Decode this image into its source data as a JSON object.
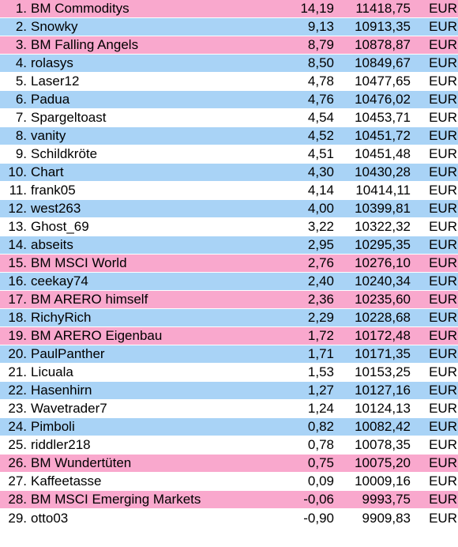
{
  "rows": [
    {
      "rank": "1.",
      "name": "BM Commoditys",
      "pct": "14,19",
      "value": "11418,75",
      "currency": "EUR",
      "color": "pink"
    },
    {
      "rank": "2.",
      "name": "Snowky",
      "pct": "9,13",
      "value": "10913,35",
      "currency": "EUR",
      "color": "blue"
    },
    {
      "rank": "3.",
      "name": "BM Falling Angels",
      "pct": "8,79",
      "value": "10878,87",
      "currency": "EUR",
      "color": "pink"
    },
    {
      "rank": "4.",
      "name": "rolasys",
      "pct": "8,50",
      "value": "10849,67",
      "currency": "EUR",
      "color": "blue"
    },
    {
      "rank": "5.",
      "name": "Laser12",
      "pct": "4,78",
      "value": "10477,65",
      "currency": "EUR",
      "color": "white"
    },
    {
      "rank": "6.",
      "name": "Padua",
      "pct": "4,76",
      "value": "10476,02",
      "currency": "EUR",
      "color": "blue"
    },
    {
      "rank": "7.",
      "name": "Spargeltoast",
      "pct": "4,54",
      "value": "10453,71",
      "currency": "EUR",
      "color": "white"
    },
    {
      "rank": "8.",
      "name": "vanity",
      "pct": "4,52",
      "value": "10451,72",
      "currency": "EUR",
      "color": "blue"
    },
    {
      "rank": "9.",
      "name": "Schildkröte",
      "pct": "4,51",
      "value": "10451,48",
      "currency": "EUR",
      "color": "white"
    },
    {
      "rank": "10.",
      "name": "Chart",
      "pct": "4,30",
      "value": "10430,28",
      "currency": "EUR",
      "color": "blue"
    },
    {
      "rank": "11.",
      "name": "frank05",
      "pct": "4,14",
      "value": "10414,11",
      "currency": "EUR",
      "color": "white"
    },
    {
      "rank": "12.",
      "name": "west263",
      "pct": "4,00",
      "value": "10399,81",
      "currency": "EUR",
      "color": "blue"
    },
    {
      "rank": "13.",
      "name": "Ghost_69",
      "pct": "3,22",
      "value": "10322,32",
      "currency": "EUR",
      "color": "white"
    },
    {
      "rank": "14.",
      "name": "abseits",
      "pct": "2,95",
      "value": "10295,35",
      "currency": "EUR",
      "color": "blue"
    },
    {
      "rank": "15.",
      "name": "BM MSCI World",
      "pct": "2,76",
      "value": "10276,10",
      "currency": "EUR",
      "color": "pink"
    },
    {
      "rank": "16.",
      "name": "ceekay74",
      "pct": "2,40",
      "value": "10240,34",
      "currency": "EUR",
      "color": "blue"
    },
    {
      "rank": "17.",
      "name": "BM ARERO himself",
      "pct": "2,36",
      "value": "10235,60",
      "currency": "EUR",
      "color": "pink"
    },
    {
      "rank": "18.",
      "name": "RichyRich",
      "pct": "2,29",
      "value": "10228,68",
      "currency": "EUR",
      "color": "blue"
    },
    {
      "rank": "19.",
      "name": "BM ARERO Eigenbau",
      "pct": "1,72",
      "value": "10172,48",
      "currency": "EUR",
      "color": "pink"
    },
    {
      "rank": "20.",
      "name": "PaulPanther",
      "pct": "1,71",
      "value": "10171,35",
      "currency": "EUR",
      "color": "blue"
    },
    {
      "rank": "21.",
      "name": "Licuala",
      "pct": "1,53",
      "value": "10153,25",
      "currency": "EUR",
      "color": "white"
    },
    {
      "rank": "22.",
      "name": "Hasenhirn",
      "pct": "1,27",
      "value": "10127,16",
      "currency": "EUR",
      "color": "blue"
    },
    {
      "rank": "23.",
      "name": "Wavetrader7",
      "pct": "1,24",
      "value": "10124,13",
      "currency": "EUR",
      "color": "white"
    },
    {
      "rank": "24.",
      "name": "Pimboli",
      "pct": "0,82",
      "value": "10082,42",
      "currency": "EUR",
      "color": "blue"
    },
    {
      "rank": "25.",
      "name": "riddler218",
      "pct": "0,78",
      "value": "10078,35",
      "currency": "EUR",
      "color": "white"
    },
    {
      "rank": "26.",
      "name": "BM Wundertüten",
      "pct": "0,75",
      "value": "10075,20",
      "currency": "EUR",
      "color": "pink"
    },
    {
      "rank": "27.",
      "name": "Kaffeetasse",
      "pct": "0,09",
      "value": "10009,16",
      "currency": "EUR",
      "color": "white"
    },
    {
      "rank": "28.",
      "name": "BM MSCI Emerging Markets",
      "pct": "-0,06",
      "value": "9993,75",
      "currency": "EUR",
      "color": "pink"
    },
    {
      "rank": "29.",
      "name": "otto03",
      "pct": "-0,90",
      "value": "9909,83",
      "currency": "EUR",
      "color": "white"
    }
  ]
}
